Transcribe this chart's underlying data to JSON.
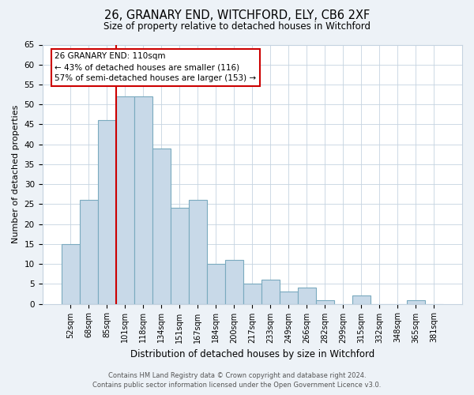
{
  "title": "26, GRANARY END, WITCHFORD, ELY, CB6 2XF",
  "subtitle": "Size of property relative to detached houses in Witchford",
  "xlabel": "Distribution of detached houses by size in Witchford",
  "ylabel": "Number of detached properties",
  "bar_labels": [
    "52sqm",
    "68sqm",
    "85sqm",
    "101sqm",
    "118sqm",
    "134sqm",
    "151sqm",
    "167sqm",
    "184sqm",
    "200sqm",
    "217sqm",
    "233sqm",
    "249sqm",
    "266sqm",
    "282sqm",
    "299sqm",
    "315sqm",
    "332sqm",
    "348sqm",
    "365sqm",
    "381sqm"
  ],
  "bar_values": [
    15,
    26,
    46,
    52,
    52,
    39,
    24,
    26,
    10,
    11,
    5,
    6,
    3,
    4,
    1,
    0,
    2,
    0,
    0,
    1,
    0
  ],
  "bar_color": "#c8d9e8",
  "bar_edge_color": "#7aaabf",
  "vline_x": 2.5,
  "vline_color": "#cc0000",
  "ylim": [
    0,
    65
  ],
  "yticks": [
    0,
    5,
    10,
    15,
    20,
    25,
    30,
    35,
    40,
    45,
    50,
    55,
    60,
    65
  ],
  "annotation_title": "26 GRANARY END: 110sqm",
  "annotation_line1": "← 43% of detached houses are smaller (116)",
  "annotation_line2": "57% of semi-detached houses are larger (153) →",
  "annotation_box_color": "#ffffff",
  "annotation_box_edge": "#cc0000",
  "footer_line1": "Contains HM Land Registry data © Crown copyright and database right 2024.",
  "footer_line2": "Contains public sector information licensed under the Open Government Licence v3.0.",
  "bg_color": "#edf2f7",
  "plot_bg_color": "#ffffff",
  "grid_color": "#c5d3e0"
}
